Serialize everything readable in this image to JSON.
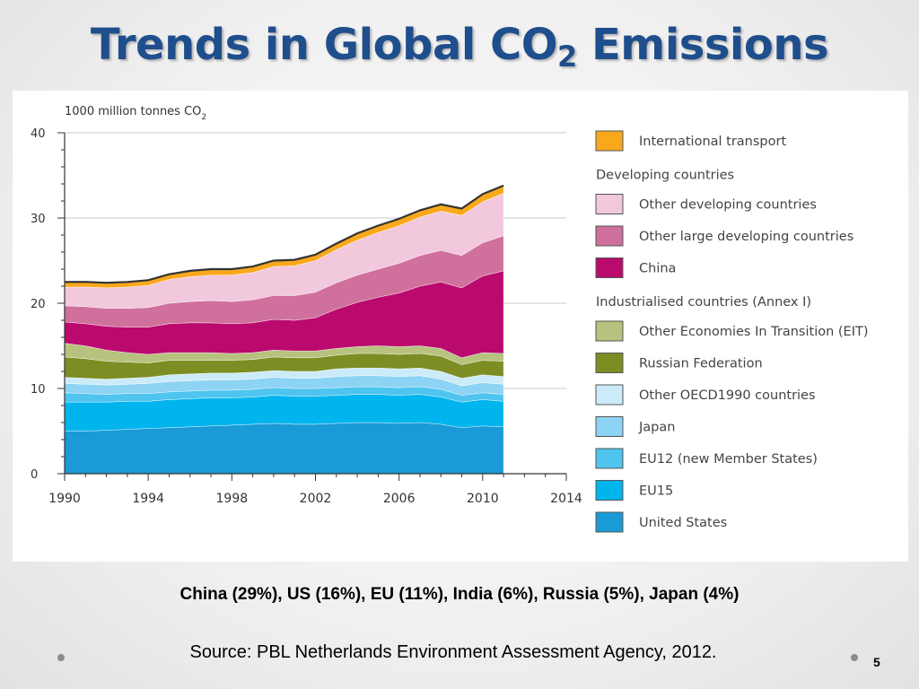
{
  "slide": {
    "title_main": "Trends in Global CO",
    "title_sub": "2",
    "title_end": " Emissions",
    "caption": "China (29%), US (16%), EU (11%), India (6%), Russia (5%), Japan (4%)",
    "source": "Source: PBL Netherlands Environment Assessment Agency, 2012.",
    "slide_number": "5"
  },
  "chart_data": {
    "type": "area",
    "stacked": true,
    "ylabel_main": "1000 million tonnes CO",
    "ylabel_sub": "2",
    "xlim": [
      1990,
      2014
    ],
    "ylim": [
      0,
      40
    ],
    "xticks": [
      1990,
      1994,
      1998,
      2002,
      2006,
      2010,
      2014
    ],
    "yticks": [
      0,
      10,
      20,
      30,
      40
    ],
    "grid": "horizontal",
    "legend_position": "right",
    "x": [
      1990,
      1991,
      1992,
      1993,
      1994,
      1995,
      1996,
      1997,
      1998,
      1999,
      2000,
      2001,
      2002,
      2003,
      2004,
      2005,
      2006,
      2007,
      2008,
      2009,
      2010,
      2011
    ],
    "legend_groups": [
      {
        "type": "item",
        "series": "International transport"
      },
      {
        "type": "header",
        "label": "Developing countries"
      },
      {
        "type": "item",
        "series": "Other developing countries"
      },
      {
        "type": "item",
        "series": "Other large developing countries"
      },
      {
        "type": "item",
        "series": "China"
      },
      {
        "type": "header",
        "label": "Industrialised countries (Annex I)"
      },
      {
        "type": "item",
        "series": "Other Economies In Transition (EIT)"
      },
      {
        "type": "item",
        "series": "Russian Federation"
      },
      {
        "type": "item",
        "series": "Other OECD1990 countries"
      },
      {
        "type": "item",
        "series": "Japan"
      },
      {
        "type": "item",
        "series": "EU12 (new Member States)"
      },
      {
        "type": "item",
        "series": "EU15"
      },
      {
        "type": "item",
        "series": "United States"
      }
    ],
    "series": [
      {
        "name": "United States",
        "color": "#1a9ad6",
        "values": [
          5.0,
          5.0,
          5.1,
          5.2,
          5.3,
          5.4,
          5.5,
          5.6,
          5.7,
          5.8,
          5.9,
          5.8,
          5.8,
          5.9,
          6.0,
          6.0,
          5.9,
          6.0,
          5.8,
          5.4,
          5.6,
          5.5
        ]
      },
      {
        "name": "EU15",
        "color": "#00b4ee",
        "values": [
          3.4,
          3.4,
          3.3,
          3.3,
          3.2,
          3.3,
          3.3,
          3.3,
          3.2,
          3.2,
          3.3,
          3.3,
          3.3,
          3.3,
          3.3,
          3.3,
          3.3,
          3.3,
          3.2,
          3.0,
          3.1,
          3.0
        ]
      },
      {
        "name": "EU12 (new Member States)",
        "color": "#4ec4ef",
        "values": [
          1.1,
          1.0,
          0.9,
          0.9,
          0.9,
          0.9,
          0.9,
          0.9,
          0.9,
          0.9,
          0.9,
          0.9,
          0.9,
          0.9,
          0.9,
          0.9,
          0.9,
          0.9,
          0.9,
          0.8,
          0.8,
          0.8
        ]
      },
      {
        "name": "Japan",
        "color": "#8dd3f4",
        "values": [
          1.1,
          1.1,
          1.1,
          1.1,
          1.2,
          1.2,
          1.2,
          1.2,
          1.2,
          1.2,
          1.2,
          1.2,
          1.2,
          1.3,
          1.3,
          1.3,
          1.3,
          1.3,
          1.2,
          1.1,
          1.2,
          1.2
        ]
      },
      {
        "name": "Other OECD1990 countries",
        "color": "#ccebf8",
        "values": [
          0.7,
          0.7,
          0.7,
          0.7,
          0.7,
          0.8,
          0.8,
          0.8,
          0.8,
          0.8,
          0.8,
          0.8,
          0.8,
          0.9,
          0.9,
          0.9,
          0.9,
          0.9,
          0.9,
          0.9,
          0.9,
          0.9
        ]
      },
      {
        "name": "Russian Federation",
        "color": "#7c8e23",
        "values": [
          2.4,
          2.3,
          2.1,
          1.9,
          1.7,
          1.7,
          1.6,
          1.5,
          1.5,
          1.5,
          1.6,
          1.6,
          1.6,
          1.6,
          1.7,
          1.7,
          1.7,
          1.7,
          1.8,
          1.6,
          1.7,
          1.8
        ]
      },
      {
        "name": "Other Economies In Transition (EIT)",
        "color": "#b7c27e",
        "values": [
          1.6,
          1.5,
          1.3,
          1.1,
          1.0,
          0.9,
          0.9,
          0.9,
          0.8,
          0.8,
          0.8,
          0.8,
          0.8,
          0.8,
          0.8,
          0.9,
          0.9,
          0.9,
          0.9,
          0.8,
          0.9,
          0.9
        ]
      },
      {
        "name": "China",
        "color": "#bb0a6e",
        "values": [
          2.5,
          2.6,
          2.8,
          3.0,
          3.2,
          3.4,
          3.5,
          3.5,
          3.5,
          3.5,
          3.6,
          3.6,
          3.9,
          4.6,
          5.2,
          5.7,
          6.3,
          7.0,
          7.8,
          8.2,
          9.0,
          9.7
        ]
      },
      {
        "name": "Other large developing countries",
        "color": "#d0709c",
        "values": [
          1.9,
          2.0,
          2.1,
          2.2,
          2.3,
          2.4,
          2.5,
          2.6,
          2.6,
          2.7,
          2.8,
          2.9,
          3.0,
          3.1,
          3.2,
          3.3,
          3.5,
          3.6,
          3.7,
          3.8,
          3.9,
          4.1
        ]
      },
      {
        "name": "Other developing countries",
        "color": "#f2c8dd",
        "values": [
          2.2,
          2.3,
          2.4,
          2.5,
          2.6,
          2.8,
          2.9,
          3.0,
          3.1,
          3.2,
          3.4,
          3.5,
          3.7,
          3.9,
          4.1,
          4.3,
          4.4,
          4.5,
          4.6,
          4.7,
          4.8,
          5.0
        ]
      },
      {
        "name": "International transport",
        "color": "#f9a81c",
        "values": [
          0.6,
          0.6,
          0.6,
          0.6,
          0.6,
          0.6,
          0.7,
          0.7,
          0.7,
          0.7,
          0.7,
          0.7,
          0.7,
          0.7,
          0.8,
          0.8,
          0.8,
          0.8,
          0.8,
          0.8,
          0.9,
          0.9
        ]
      }
    ]
  }
}
